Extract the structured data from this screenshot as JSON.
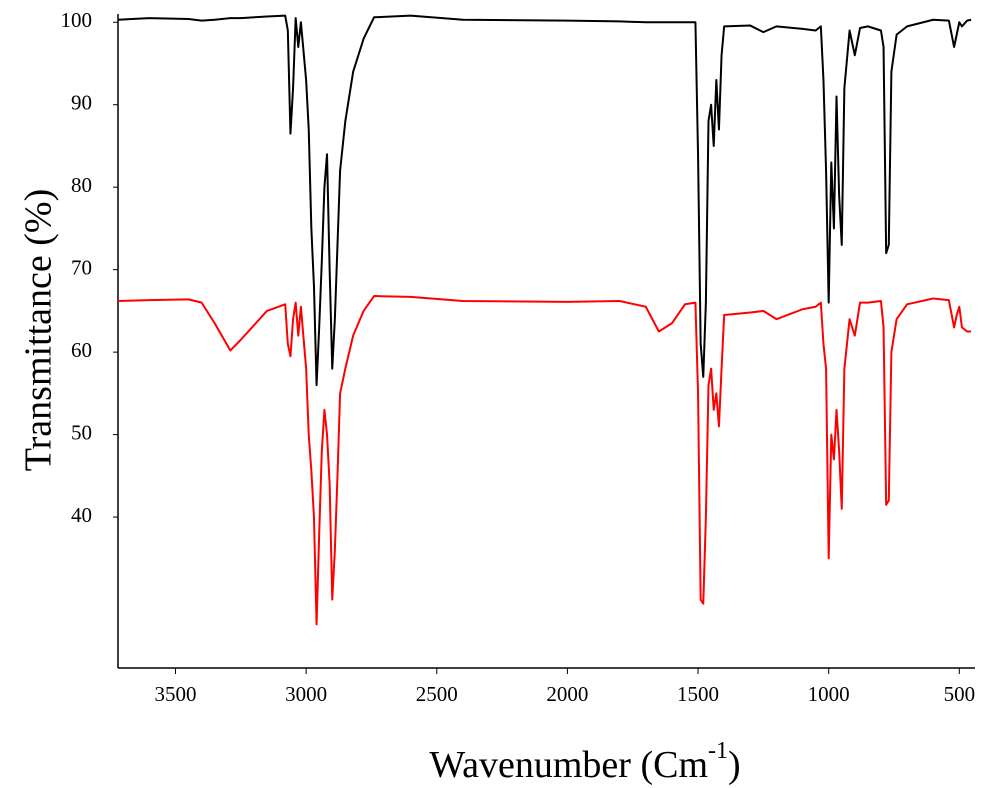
{
  "chart_data": {
    "type": "line",
    "y_label": "Transmittance (%)",
    "x_label": [
      "Wavenumber (Cm",
      "-1",
      ")"
    ],
    "x": [
      3720,
      3600,
      3450,
      3400,
      3350,
      3290,
      3250,
      3150,
      3080,
      3070,
      3060,
      3050,
      3040,
      3030,
      3020,
      3000,
      2990,
      2980,
      2970,
      2960,
      2950,
      2940,
      2930,
      2920,
      2910,
      2900,
      2890,
      2880,
      2870,
      2850,
      2820,
      2780,
      2740,
      2600,
      2400,
      2000,
      1800,
      1700,
      1650,
      1600,
      1550,
      1510,
      1500,
      1490,
      1480,
      1470,
      1460,
      1450,
      1440,
      1430,
      1420,
      1410,
      1400,
      1300,
      1250,
      1200,
      1100,
      1050,
      1030,
      1020,
      1010,
      1000,
      990,
      980,
      970,
      960,
      950,
      940,
      920,
      900,
      880,
      850,
      800,
      790,
      780,
      770,
      760,
      740,
      700,
      600,
      540,
      520,
      510,
      500,
      490,
      470,
      455
    ],
    "series": [
      {
        "color": "#000000",
        "values": [
          100.3,
          100.5,
          100.4,
          100.2,
          100.3,
          100.5,
          100.5,
          100.7,
          100.8,
          99,
          86.5,
          92,
          100.5,
          97,
          100,
          93,
          87,
          75,
          68,
          56,
          63,
          71,
          80,
          84,
          70,
          58,
          64,
          73,
          82,
          88,
          94,
          98,
          100.6,
          100.8,
          100.3,
          100.2,
          100.1,
          100,
          100,
          100,
          100,
          100,
          84,
          61,
          57,
          66,
          88,
          90,
          85,
          93,
          87,
          96,
          99.5,
          99.6,
          98.8,
          99.5,
          99.2,
          99,
          99.5,
          93,
          82,
          66,
          83,
          75,
          91,
          79,
          73,
          92,
          99,
          96,
          99.3,
          99.5,
          99,
          97,
          72,
          73,
          94,
          98.5,
          99.5,
          100.3,
          100.2,
          97,
          98.5,
          100,
          99.5,
          100.2,
          100.3
        ]
      },
      {
        "color": "#ff0000",
        "values": [
          66.2,
          66.3,
          66.4,
          66.0,
          63.5,
          60.2,
          61.5,
          65.0,
          65.8,
          61,
          59.5,
          64,
          66,
          62,
          65.5,
          58,
          50,
          45.6,
          40,
          27,
          38,
          48,
          53,
          50,
          44,
          30,
          36,
          45,
          55,
          58,
          62,
          65,
          66.8,
          66.7,
          66.2,
          66.1,
          66.2,
          65.5,
          62.5,
          63.5,
          65.8,
          66,
          55,
          30,
          29.5,
          40,
          56,
          58,
          53,
          55,
          51,
          58,
          64.5,
          64.8,
          65,
          64,
          65.2,
          65.5,
          66,
          61,
          58,
          35,
          50,
          47,
          53,
          48,
          41,
          58,
          64,
          62,
          66,
          66,
          66.2,
          63,
          41.5,
          42,
          60,
          64,
          65.8,
          66.5,
          66.3,
          63,
          64.5,
          65.5,
          63,
          62.5,
          62.5
        ]
      }
    ],
    "xlim": [
      3720,
      440
    ],
    "xticks": [
      3500,
      3000,
      2500,
      2000,
      1500,
      1000,
      500
    ],
    "ylim": [
      21.7,
      101
    ],
    "yticks": [
      40,
      50,
      60,
      70,
      80,
      90,
      100
    ]
  }
}
